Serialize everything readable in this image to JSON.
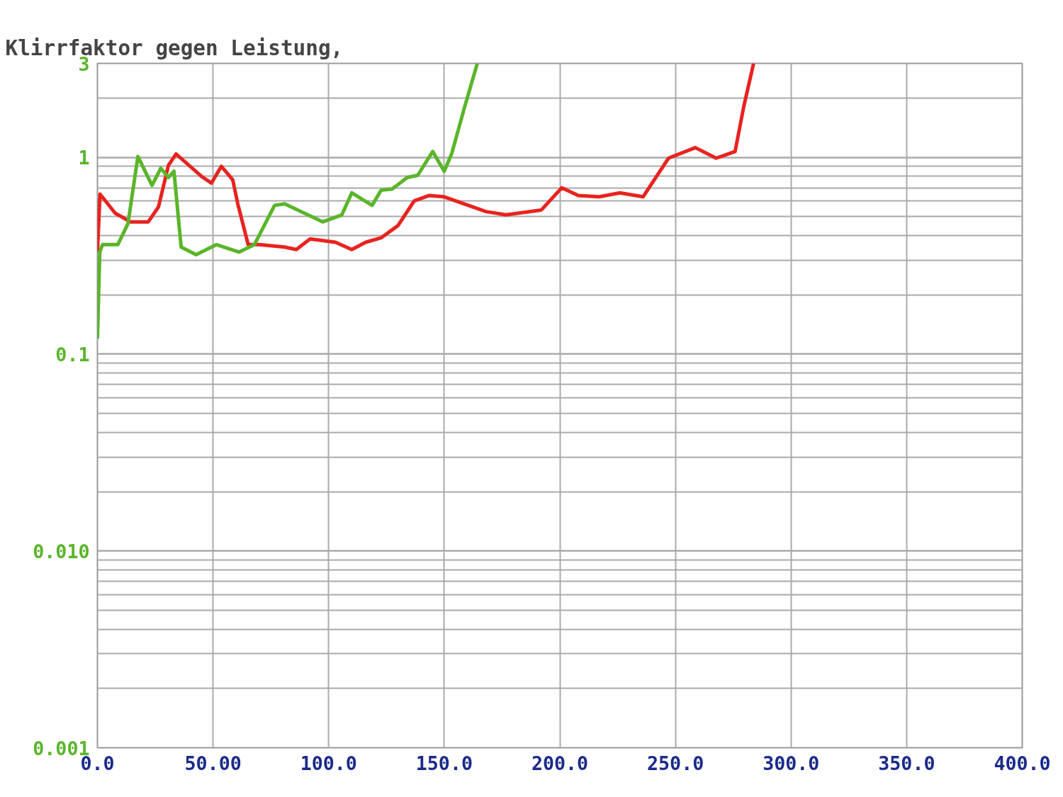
{
  "chart_data": {
    "type": "line",
    "title": "Klirrfaktor gegen Leistung,",
    "log": "y",
    "grid": true,
    "line_style": "solid",
    "xlim": [
      0,
      400
    ],
    "ylim": [
      0.001,
      3
    ],
    "xticks": [
      {
        "value": 0,
        "label": "0.0"
      },
      {
        "value": 50,
        "label": "50.00"
      },
      {
        "value": 100,
        "label": "100.0"
      },
      {
        "value": 150,
        "label": "150.0"
      },
      {
        "value": 200,
        "label": "200.0"
      },
      {
        "value": 250,
        "label": "250.0"
      },
      {
        "value": 300,
        "label": "300.0"
      },
      {
        "value": 350,
        "label": "350.0"
      },
      {
        "value": 400,
        "label": "400.0"
      }
    ],
    "yticks": [
      {
        "value": 0.001,
        "label": "0.001"
      },
      {
        "value": 0.01,
        "label": "0.010"
      },
      0.1,
      1,
      3
    ],
    "series": [
      {
        "color": "#e8231f",
        "x": [
          0,
          1.1,
          7.7,
          14.3,
          22,
          26.4,
          30.7,
          34,
          45,
          49.3,
          53.6,
          58.5,
          60.7,
          65.2,
          70,
          81,
          86,
          92,
          103,
          110,
          116,
          122.7,
          130,
          137,
          143.5,
          150,
          168,
          176.7,
          192,
          200.8,
          208,
          217,
          226,
          236,
          247,
          258.6,
          267.6,
          275.8,
          279.5,
          283.8
        ],
        "values": [
          0.33,
          0.65,
          0.52,
          0.47,
          0.47,
          0.56,
          0.91,
          1.04,
          0.8,
          0.74,
          0.9,
          0.77,
          0.58,
          0.36,
          0.36,
          0.35,
          0.34,
          0.385,
          0.37,
          0.34,
          0.37,
          0.39,
          0.45,
          0.6,
          0.64,
          0.63,
          0.53,
          0.51,
          0.54,
          0.7,
          0.64,
          0.63,
          0.66,
          0.63,
          0.99,
          1.12,
          0.99,
          1.07,
          1.8,
          3
        ]
      },
      {
        "color": "#5ab52a",
        "x": [
          0,
          1,
          2.2,
          8.8,
          13.2,
          17.5,
          23.6,
          27.4,
          30.7,
          33.1,
          36.2,
          42.7,
          51.5,
          61.3,
          67.9,
          76.6,
          81,
          97.5,
          105.7,
          110,
          118.8,
          122.7,
          127.5,
          134,
          138.5,
          145,
          150,
          153.3,
          158.8,
          164.3
        ],
        "values": [
          0.12,
          0.33,
          0.36,
          0.36,
          0.46,
          1.01,
          0.72,
          0.88,
          0.79,
          0.85,
          0.35,
          0.32,
          0.36,
          0.33,
          0.36,
          0.57,
          0.58,
          0.47,
          0.51,
          0.66,
          0.57,
          0.68,
          0.69,
          0.79,
          0.81,
          1.07,
          0.85,
          1.05,
          1.8,
          3
        ]
      }
    ]
  }
}
